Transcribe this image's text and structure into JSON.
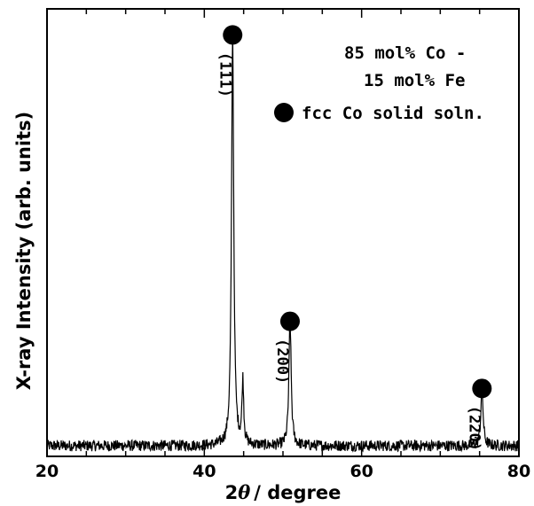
{
  "chart_data": {
    "type": "line",
    "title": "",
    "xlabel_prefix": "2",
    "xlabel_theta": "θ",
    "xlabel_suffix": "/ degree",
    "ylabel": "X-ray Intensity (arb. units)",
    "xlim": [
      20,
      80
    ],
    "ylim": [
      0,
      100
    ],
    "xticks": [
      20,
      40,
      60,
      80
    ],
    "x_minor_step": 5,
    "grid": false,
    "y_tick_labels": false,
    "series": [
      {
        "peaks": [
          {
            "x": 43.6,
            "y": 92,
            "w": 0.17
          },
          {
            "x": 44.9,
            "y": 14,
            "w": 0.13
          },
          {
            "x": 50.9,
            "y": 28,
            "w": 0.17
          },
          {
            "x": 75.3,
            "y": 13,
            "w": 0.17
          }
        ],
        "baseline": 2.8
      }
    ],
    "sample_label": [
      "85 mol% Co -",
      "15 mol% Fe"
    ],
    "legend": {
      "marker": "filled-circle",
      "label": "fcc Co solid soln.",
      "position": "top-right"
    },
    "annotations": [
      {
        "label": "(111)",
        "x": 43.6,
        "y": 92
      },
      {
        "label": "(200)",
        "x": 50.9,
        "y": 28
      },
      {
        "label": "(220)",
        "x": 75.3,
        "y": 13
      }
    ]
  }
}
